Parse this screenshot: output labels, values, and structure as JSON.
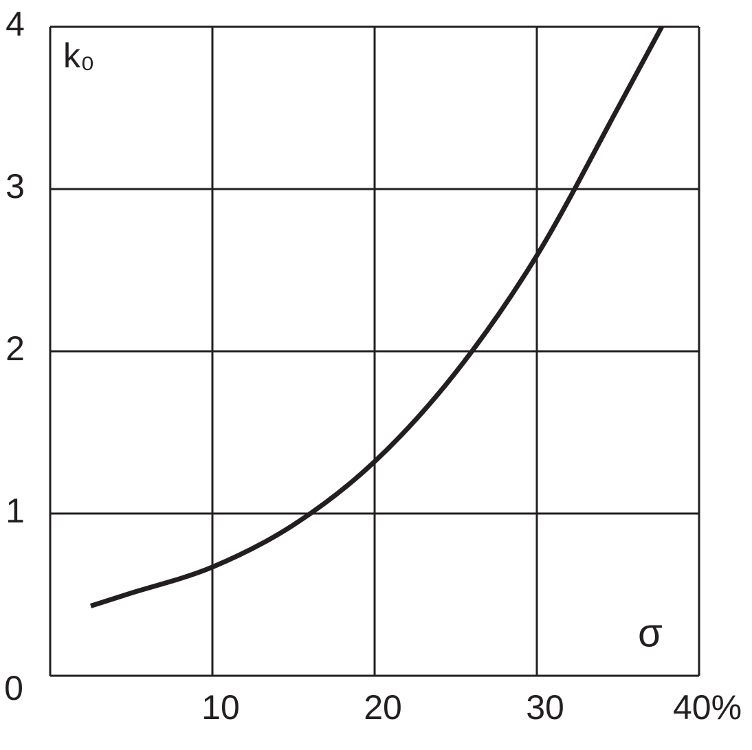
{
  "chart_data": {
    "type": "line",
    "x_label": "σ",
    "y_label": "k₀",
    "series": [
      {
        "name": "k0",
        "color": "#231f20",
        "x": [
          2.5,
          5,
          10,
          15,
          20,
          25,
          30,
          35,
          37.7
        ],
        "values": [
          0.43,
          0.51,
          0.67,
          0.93,
          1.32,
          1.87,
          2.59,
          3.5,
          4.0
        ]
      }
    ],
    "xlim": [
      0,
      40
    ],
    "ylim": [
      0,
      4
    ],
    "xticks": [
      {
        "value": 0,
        "label": "0"
      },
      10,
      20,
      30,
      {
        "value": 40,
        "label": "40%"
      }
    ],
    "yticks": [
      1,
      2,
      3,
      4
    ],
    "grid": true
  }
}
